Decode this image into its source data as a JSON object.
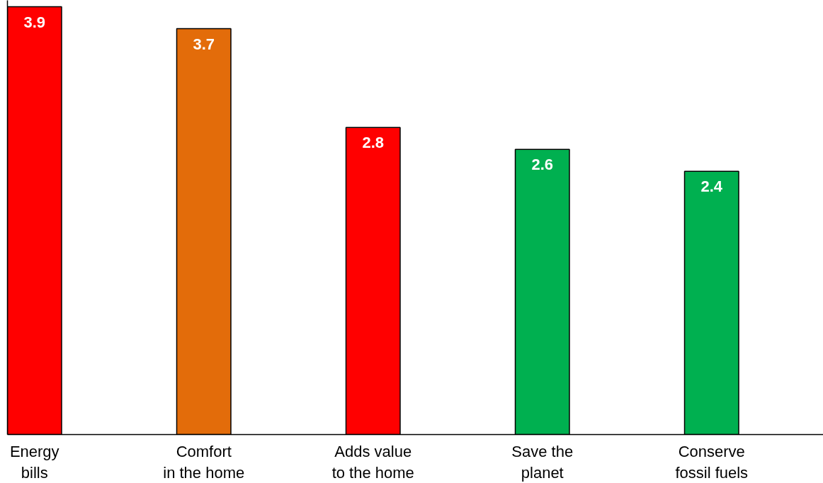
{
  "chart_data": {
    "type": "bar",
    "categories": [
      "Energy\nbills",
      "Comfort\nin the home",
      "Adds value\nto the home",
      "Save the\nplanet",
      "Conserve\nfossil fuels"
    ],
    "values": [
      3.9,
      3.7,
      2.8,
      2.6,
      2.4
    ],
    "colors": [
      "#ff0000",
      "#e36c0a",
      "#ff0000",
      "#00b050",
      "#00b050"
    ],
    "data_labels": true,
    "grid": false
  }
}
